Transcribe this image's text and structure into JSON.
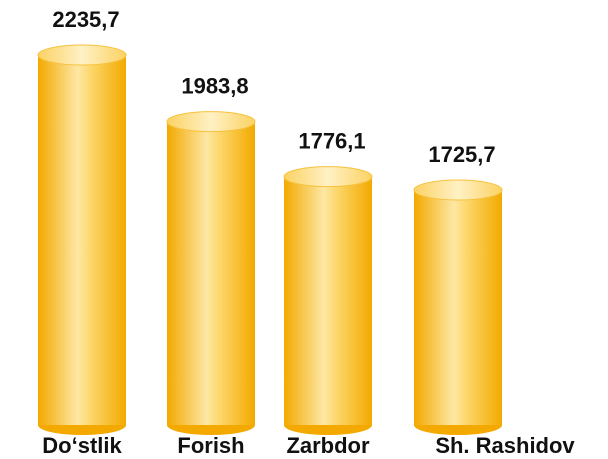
{
  "chart_data": {
    "type": "bar",
    "categories": [
      "Do‘stlik",
      "Forish",
      "Zarbdor",
      "Sh. Rashidov"
    ],
    "values": [
      2235.7,
      1983.8,
      1776.1,
      1725.7
    ],
    "value_labels": [
      "2235,7",
      "1983,8",
      "1776,1",
      "1725,7"
    ],
    "color": "#f7b500"
  }
}
